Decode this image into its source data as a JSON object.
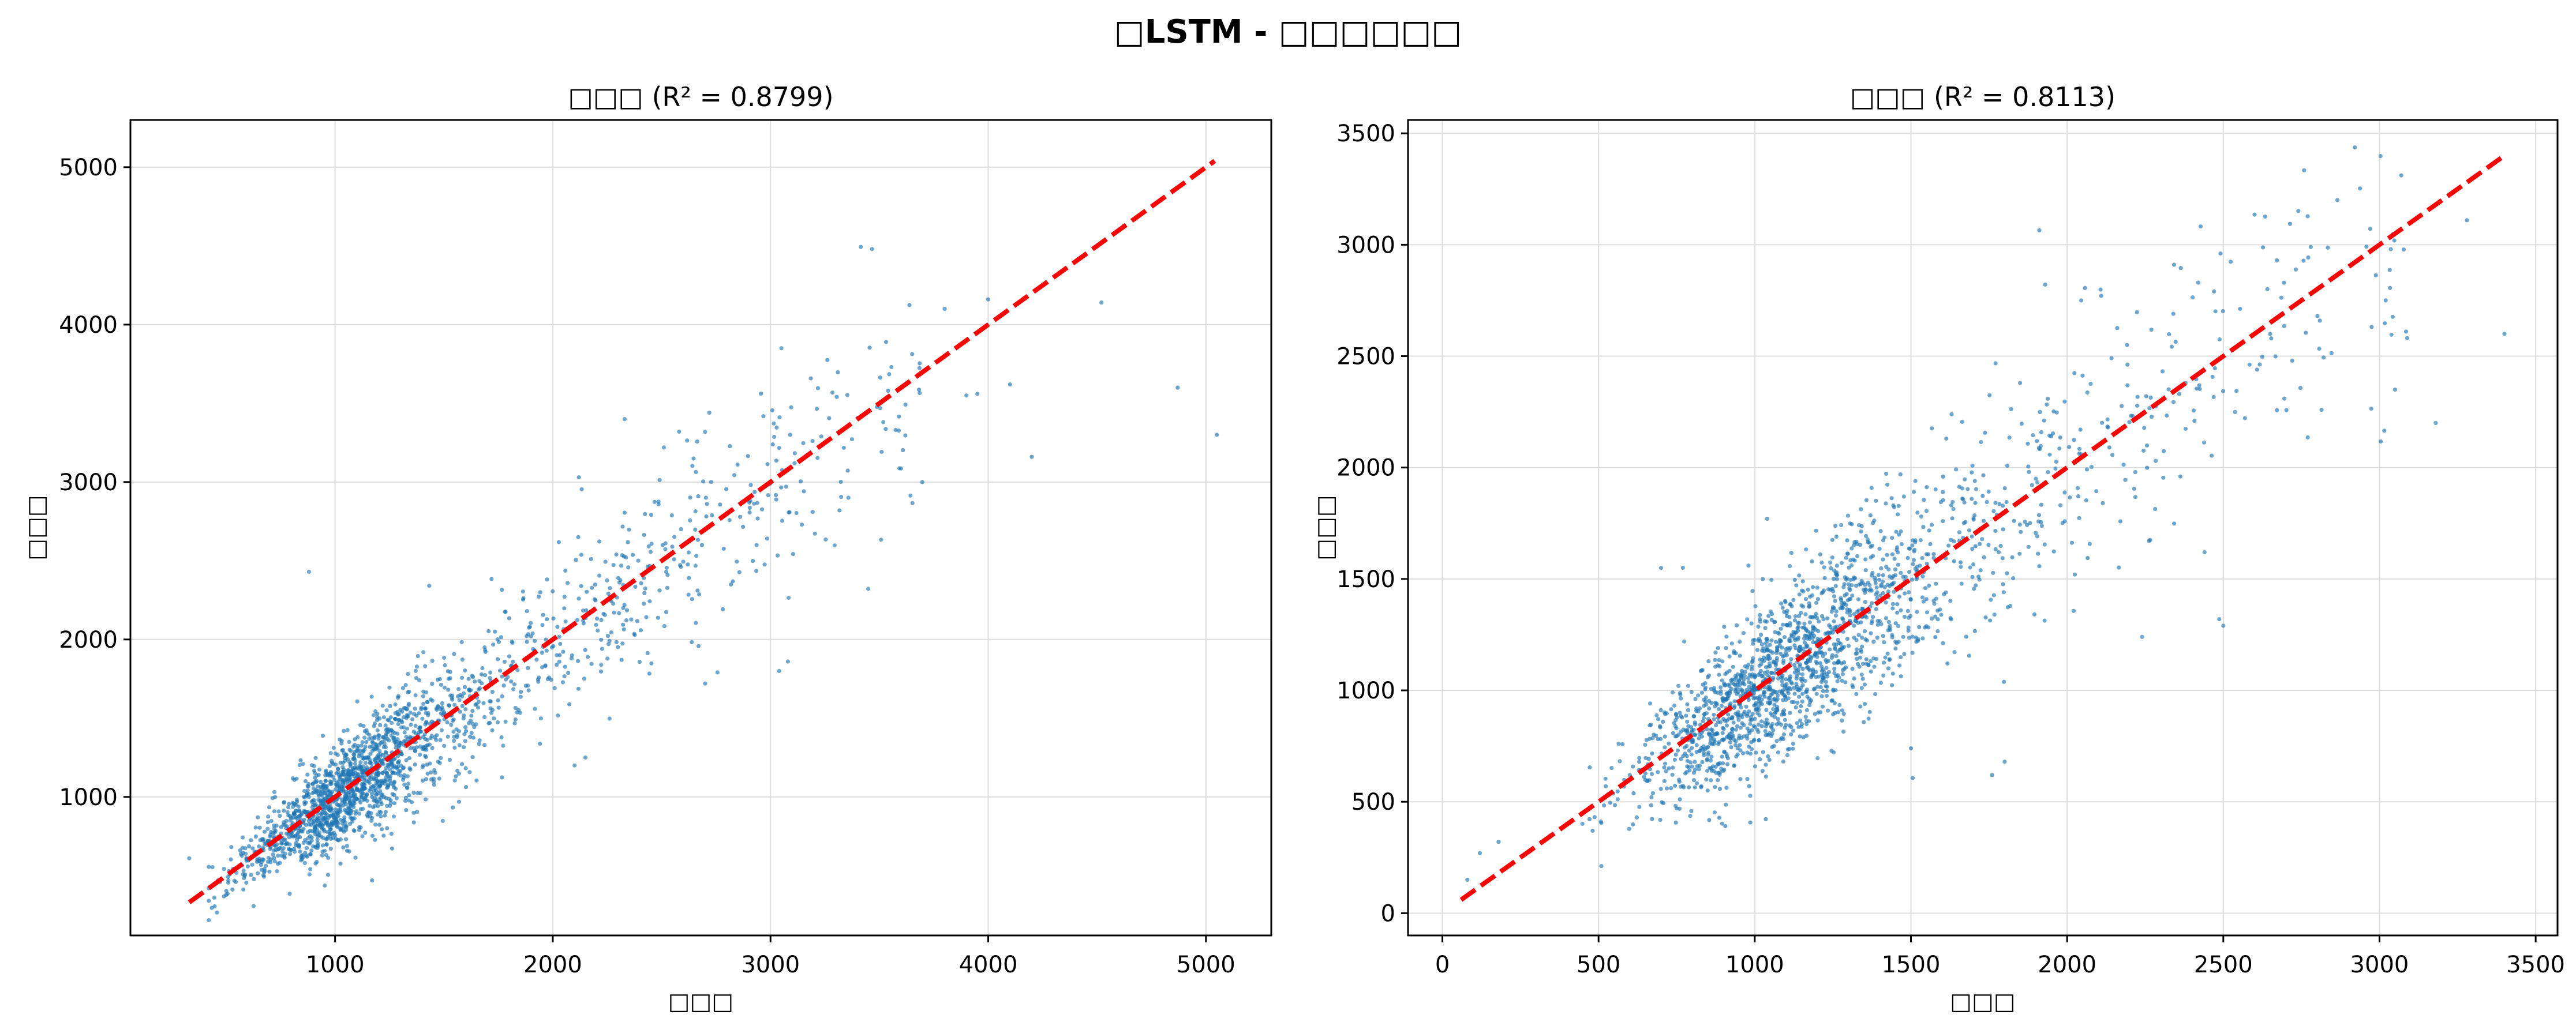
{
  "suptitle": "□LSTM - □□□□□□",
  "colors": {
    "points": "#1f77b4",
    "ideal_line": "#ff0000",
    "grid": "#dddddd"
  },
  "chart_data": [
    {
      "type": "scatter",
      "title": "□□□ (R² = 0.8799)",
      "xlabel": "□□□",
      "ylabel": "□□□",
      "xlim": [
        60,
        5300
      ],
      "ylim": [
        120,
        5300
      ],
      "xticks": [
        1000,
        2000,
        3000,
        4000,
        5000
      ],
      "yticks": [
        1000,
        2000,
        3000,
        4000,
        5000
      ],
      "grid": true,
      "ideal_line": {
        "from": 330,
        "to": 5040,
        "style": "dashed"
      },
      "scatter_seed": 11,
      "outliers": [
        [
          880,
          2430
        ],
        [
          3050,
          3850
        ],
        [
          3800,
          4100
        ],
        [
          4000,
          4160
        ],
        [
          4520,
          4140
        ],
        [
          4870,
          3600
        ],
        [
          5050,
          3300
        ],
        [
          4200,
          3160
        ],
        [
          4100,
          3620
        ],
        [
          3900,
          3550
        ],
        [
          3950,
          3560
        ],
        [
          2330,
          3400
        ],
        [
          2580,
          3320
        ],
        [
          2120,
          3030
        ],
        [
          1170,
          470
        ],
        [
          3040,
          1800
        ],
        [
          3080,
          1860
        ],
        [
          2700,
          1720
        ],
        [
          2100,
          1200
        ],
        [
          2150,
          1250
        ],
        [
          330,
          610
        ]
      ],
      "points": [
        [
          1000,
          1000
        ],
        [
          1100,
          1050
        ],
        [
          900,
          950
        ],
        [
          1200,
          1150
        ],
        [
          800,
          820
        ],
        [
          700,
          720
        ]
      ]
    },
    {
      "type": "scatter",
      "title": "□□□ (R² = 0.8113)",
      "xlabel": "□□□",
      "ylabel": "□□□",
      "xlim": [
        -110,
        3570
      ],
      "ylim": [
        -100,
        3560
      ],
      "xticks": [
        0,
        500,
        1000,
        1500,
        2000,
        2500,
        3000,
        3500
      ],
      "yticks": [
        0,
        500,
        1000,
        1500,
        2000,
        2500,
        3000,
        3500
      ],
      "grid": true,
      "ideal_line": {
        "from": 60,
        "to": 3390,
        "style": "dashed"
      },
      "scatter_seed": 29,
      "outliers": [
        [
          80,
          150
        ],
        [
          120,
          270
        ],
        [
          180,
          320
        ],
        [
          700,
          1550
        ],
        [
          770,
          1550
        ],
        [
          1760,
          620
        ],
        [
          1800,
          680
        ],
        [
          2780,
          2990
        ],
        [
          3280,
          3110
        ],
        [
          3400,
          2600
        ],
        [
          3020,
          2750
        ],
        [
          3050,
          2350
        ],
        [
          3180,
          2200
        ],
        [
          2500,
          1290
        ],
        [
          2440,
          1620
        ],
        [
          2240,
          1240
        ],
        [
          2420,
          2830
        ],
        [
          2650,
          2600
        ],
        [
          2340,
          2690
        ],
        [
          1040,
          1770
        ],
        [
          980,
          1560
        ],
        [
          1500,
          740
        ]
      ],
      "points": [
        [
          1000,
          1000
        ],
        [
          1100,
          1050
        ],
        [
          900,
          950
        ],
        [
          1200,
          1150
        ],
        [
          800,
          820
        ],
        [
          600,
          620
        ]
      ]
    }
  ]
}
